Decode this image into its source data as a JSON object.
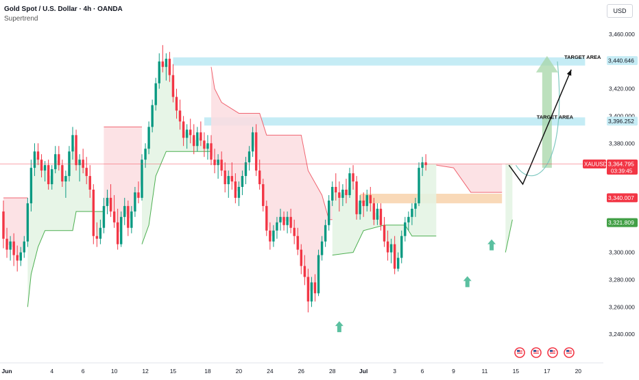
{
  "header": {
    "title": "Gold Spot / U.S. Dollar · 4h · OANDA",
    "indicator": "Supertrend",
    "currency": "USD"
  },
  "colors": {
    "up": "#089981",
    "down": "#f23645",
    "target_fill": "#b2e6f2",
    "zone_fill": "#f7c99a",
    "supertrend_up": "#4caf50",
    "supertrend_down": "#f06470",
    "arrow_fill": "#a5d6a7",
    "marker": "#5bc0a0",
    "price_label": "#f23645",
    "support_label": "#43a047"
  },
  "chart_data": {
    "type": "candlestick",
    "symbol": "XAUUSD",
    "timeframe": "4h",
    "ylim": [
      3225,
      3470
    ],
    "yticks": [
      {
        "value": 3460,
        "label": "3,460.000"
      },
      {
        "value": 3420,
        "label": "3,420.000"
      },
      {
        "value": 3400,
        "label": "3,400.000"
      },
      {
        "value": 3380,
        "label": "3,380.000"
      },
      {
        "value": 3300,
        "label": "3,300.000"
      },
      {
        "value": 3280,
        "label": "3,280.000"
      },
      {
        "value": 3260,
        "label": "3,260.000"
      },
      {
        "value": 3240,
        "label": "3,240.000"
      }
    ],
    "xticks": [
      {
        "bar": 1,
        "label": "Jun",
        "bold": true
      },
      {
        "bar": 14,
        "label": "4"
      },
      {
        "bar": 23,
        "label": "6"
      },
      {
        "bar": 32,
        "label": "10"
      },
      {
        "bar": 41,
        "label": "12"
      },
      {
        "bar": 49,
        "label": "15"
      },
      {
        "bar": 59,
        "label": "18"
      },
      {
        "bar": 68,
        "label": "20"
      },
      {
        "bar": 77,
        "label": "24"
      },
      {
        "bar": 86,
        "label": "26"
      },
      {
        "bar": 95,
        "label": "28"
      },
      {
        "bar": 104,
        "label": "Jul",
        "bold": true
      },
      {
        "bar": 113,
        "label": "3"
      },
      {
        "bar": 121,
        "label": "6"
      },
      {
        "bar": 130,
        "label": "9"
      },
      {
        "bar": 139,
        "label": "11"
      },
      {
        "bar": 148,
        "label": "15"
      },
      {
        "bar": 157,
        "label": "17"
      },
      {
        "bar": 166,
        "label": "20"
      }
    ],
    "candles_start_bar": 0,
    "candles": [
      [
        3330,
        3338,
        3303,
        3310
      ],
      [
        3310,
        3318,
        3296,
        3302
      ],
      [
        3302,
        3312,
        3294,
        3308
      ],
      [
        3308,
        3314,
        3290,
        3298
      ],
      [
        3298,
        3305,
        3286,
        3294
      ],
      [
        3294,
        3304,
        3290,
        3300
      ],
      [
        3300,
        3312,
        3296,
        3308
      ],
      [
        3308,
        3340,
        3304,
        3336
      ],
      [
        3336,
        3368,
        3330,
        3362
      ],
      [
        3362,
        3380,
        3356,
        3374
      ],
      [
        3374,
        3380,
        3364,
        3368
      ],
      [
        3368,
        3372,
        3355,
        3360
      ],
      [
        3360,
        3367,
        3352,
        3364
      ],
      [
        3364,
        3368,
        3346,
        3350
      ],
      [
        3350,
        3364,
        3346,
        3361
      ],
      [
        3361,
        3378,
        3358,
        3372
      ],
      [
        3372,
        3378,
        3360,
        3364
      ],
      [
        3364,
        3368,
        3348,
        3352
      ],
      [
        3352,
        3360,
        3340,
        3356
      ],
      [
        3356,
        3378,
        3352,
        3374
      ],
      [
        3374,
        3392,
        3368,
        3386
      ],
      [
        3386,
        3390,
        3360,
        3364
      ],
      [
        3364,
        3372,
        3352,
        3368
      ],
      [
        3368,
        3376,
        3358,
        3362
      ],
      [
        3362,
        3370,
        3350,
        3356
      ],
      [
        3356,
        3364,
        3340,
        3346
      ],
      [
        3346,
        3350,
        3306,
        3312
      ],
      [
        3312,
        3322,
        3304,
        3310
      ],
      [
        3310,
        3324,
        3306,
        3318
      ],
      [
        3318,
        3340,
        3314,
        3334
      ],
      [
        3334,
        3346,
        3328,
        3340
      ],
      [
        3340,
        3350,
        3326,
        3330
      ],
      [
        3330,
        3342,
        3318,
        3322
      ],
      [
        3322,
        3332,
        3302,
        3306
      ],
      [
        3306,
        3330,
        3304,
        3326
      ],
      [
        3326,
        3340,
        3320,
        3334
      ],
      [
        3334,
        3338,
        3312,
        3318
      ],
      [
        3318,
        3334,
        3314,
        3330
      ],
      [
        3330,
        3348,
        3326,
        3344
      ],
      [
        3344,
        3352,
        3336,
        3340
      ],
      [
        3340,
        3372,
        3338,
        3368
      ],
      [
        3368,
        3380,
        3362,
        3376
      ],
      [
        3376,
        3396,
        3372,
        3392
      ],
      [
        3392,
        3412,
        3388,
        3408
      ],
      [
        3408,
        3428,
        3404,
        3424
      ],
      [
        3424,
        3446,
        3420,
        3440
      ],
      [
        3440,
        3452,
        3432,
        3436
      ],
      [
        3436,
        3446,
        3426,
        3442
      ],
      [
        3442,
        3447,
        3425,
        3430
      ],
      [
        3430,
        3438,
        3410,
        3414
      ],
      [
        3414,
        3420,
        3398,
        3404
      ],
      [
        3404,
        3412,
        3390,
        3396
      ],
      [
        3396,
        3400,
        3378,
        3384
      ],
      [
        3384,
        3394,
        3376,
        3390
      ],
      [
        3390,
        3398,
        3380,
        3386
      ],
      [
        3386,
        3394,
        3372,
        3378
      ],
      [
        3378,
        3392,
        3374,
        3388
      ],
      [
        3388,
        3396,
        3378,
        3382
      ],
      [
        3382,
        3388,
        3370,
        3376
      ],
      [
        3376,
        3386,
        3368,
        3380
      ],
      [
        3380,
        3386,
        3364,
        3368
      ],
      [
        3368,
        3376,
        3358,
        3364
      ],
      [
        3364,
        3372,
        3354,
        3368
      ],
      [
        3368,
        3374,
        3356,
        3360
      ],
      [
        3360,
        3366,
        3344,
        3350
      ],
      [
        3350,
        3360,
        3340,
        3356
      ],
      [
        3356,
        3366,
        3346,
        3352
      ],
      [
        3352,
        3358,
        3336,
        3340
      ],
      [
        3340,
        3352,
        3334,
        3348
      ],
      [
        3348,
        3360,
        3342,
        3356
      ],
      [
        3356,
        3370,
        3350,
        3366
      ],
      [
        3366,
        3378,
        3360,
        3374
      ],
      [
        3374,
        3392,
        3370,
        3388
      ],
      [
        3388,
        3394,
        3356,
        3360
      ],
      [
        3360,
        3368,
        3346,
        3350
      ],
      [
        3350,
        3354,
        3330,
        3334
      ],
      [
        3334,
        3338,
        3312,
        3316
      ],
      [
        3316,
        3322,
        3302,
        3308
      ],
      [
        3308,
        3320,
        3304,
        3316
      ],
      [
        3316,
        3326,
        3310,
        3322
      ],
      [
        3322,
        3332,
        3316,
        3326
      ],
      [
        3326,
        3330,
        3316,
        3320
      ],
      [
        3320,
        3330,
        3314,
        3326
      ],
      [
        3326,
        3332,
        3314,
        3318
      ],
      [
        3318,
        3324,
        3306,
        3312
      ],
      [
        3312,
        3318,
        3298,
        3302
      ],
      [
        3302,
        3306,
        3284,
        3290
      ],
      [
        3290,
        3298,
        3276,
        3282
      ],
      [
        3282,
        3288,
        3256,
        3264
      ],
      [
        3264,
        3282,
        3260,
        3278
      ],
      [
        3278,
        3284,
        3264,
        3270
      ],
      [
        3270,
        3302,
        3268,
        3298
      ],
      [
        3298,
        3312,
        3294,
        3308
      ],
      [
        3308,
        3324,
        3304,
        3320
      ],
      [
        3320,
        3342,
        3316,
        3338
      ],
      [
        3338,
        3352,
        3334,
        3348
      ],
      [
        3348,
        3358,
        3338,
        3344
      ],
      [
        3344,
        3352,
        3330,
        3340
      ],
      [
        3340,
        3350,
        3334,
        3346
      ],
      [
        3346,
        3354,
        3336,
        3342
      ],
      [
        3342,
        3362,
        3340,
        3358
      ],
      [
        3358,
        3364,
        3346,
        3352
      ],
      [
        3352,
        3356,
        3324,
        3328
      ],
      [
        3328,
        3342,
        3324,
        3338
      ],
      [
        3338,
        3344,
        3326,
        3334
      ],
      [
        3334,
        3346,
        3330,
        3342
      ],
      [
        3342,
        3348,
        3330,
        3336
      ],
      [
        3336,
        3340,
        3320,
        3324
      ],
      [
        3324,
        3336,
        3320,
        3332
      ],
      [
        3332,
        3336,
        3316,
        3320
      ],
      [
        3320,
        3326,
        3304,
        3308
      ],
      [
        3308,
        3316,
        3294,
        3300
      ],
      [
        3300,
        3310,
        3292,
        3306
      ],
      [
        3306,
        3312,
        3284,
        3288
      ],
      [
        3288,
        3300,
        3286,
        3296
      ],
      [
        3296,
        3316,
        3292,
        3312
      ],
      [
        3312,
        3326,
        3308,
        3322
      ],
      [
        3322,
        3330,
        3316,
        3326
      ],
      [
        3326,
        3336,
        3320,
        3332
      ],
      [
        3332,
        3340,
        3326,
        3336
      ],
      [
        3336,
        3366,
        3334,
        3362
      ],
      [
        3362,
        3370,
        3356,
        3366
      ],
      [
        3366,
        3372,
        3360,
        3364
      ]
    ],
    "horizontal_levels": [
      {
        "value": 3364.795,
        "label": "3,364.795",
        "sublabel": "03:39:45",
        "tag": "XAUUSD",
        "kind": "price"
      },
      {
        "value": 3340.007,
        "label": "3,340.007",
        "kind": "resistance"
      },
      {
        "value": 3321.809,
        "label": "3,321.809",
        "kind": "support"
      },
      {
        "value": 3440.646,
        "label": "3,440.646",
        "kind": "target"
      },
      {
        "value": 3396.252,
        "label": "3,396.252",
        "kind": "target"
      }
    ],
    "zones": [
      {
        "label": "TARGET AREA",
        "from_bar": 49,
        "to_bar": 168,
        "low": 3437,
        "high": 3443
      },
      {
        "label": "TARGET AREA",
        "from_bar": 58,
        "to_bar": 168,
        "low": 3393,
        "high": 3399
      },
      {
        "label": "",
        "from_bar": 103,
        "to_bar": 144,
        "low": 3336,
        "high": 3343
      }
    ],
    "supertrend": [
      {
        "trend": "down",
        "points": [
          [
            0,
            3340
          ],
          [
            7,
            3340
          ]
        ]
      },
      {
        "trend": "up",
        "points": [
          [
            7,
            3260
          ],
          [
            8,
            3284
          ],
          [
            10,
            3304
          ],
          [
            12,
            3316
          ],
          [
            20,
            3316
          ],
          [
            21,
            3330
          ],
          [
            29,
            3330
          ]
        ]
      },
      {
        "trend": "down",
        "points": [
          [
            29,
            3392
          ],
          [
            40,
            3392
          ]
        ]
      },
      {
        "trend": "up",
        "points": [
          [
            40,
            3306
          ],
          [
            42,
            3320
          ],
          [
            44,
            3356
          ],
          [
            47,
            3374
          ],
          [
            60,
            3374
          ]
        ]
      },
      {
        "trend": "down",
        "points": [
          [
            60,
            3436
          ],
          [
            61,
            3420
          ],
          [
            63,
            3410
          ],
          [
            68,
            3402
          ],
          [
            74,
            3402
          ],
          [
            76,
            3386
          ],
          [
            86,
            3386
          ],
          [
            88,
            3360
          ],
          [
            92,
            3342
          ],
          [
            94,
            3324
          ],
          [
            95,
            3324
          ]
        ]
      },
      {
        "trend": "up",
        "points": [
          [
            95,
            3298
          ],
          [
            101,
            3300
          ],
          [
            104,
            3316
          ],
          [
            110,
            3320
          ],
          [
            116,
            3320
          ],
          [
            118,
            3312
          ],
          [
            125,
            3312
          ]
        ]
      },
      {
        "trend": "down",
        "points": [
          [
            125,
            3364
          ],
          [
            130,
            3362
          ],
          [
            135,
            3344
          ],
          [
            144,
            3344
          ]
        ]
      },
      {
        "trend": "up",
        "points": [
          [
            145,
            3300
          ],
          [
            147,
            3324
          ]
        ]
      }
    ],
    "projection_path": [
      [
        146,
        3364
      ],
      [
        150,
        3350
      ],
      [
        155,
        3380
      ],
      [
        164,
        3434
      ]
    ],
    "markers": [
      {
        "bar": 97,
        "value": 3245,
        "type": "up-arrow"
      },
      {
        "bar": 134,
        "value": 3278,
        "type": "up-arrow"
      },
      {
        "bar": 141,
        "value": 3305,
        "type": "up-arrow"
      }
    ],
    "annotations": [
      {
        "text": "TARGET AREA",
        "bar": 154,
        "value": 3398
      },
      {
        "text": "TARGET AREA",
        "bar": 162,
        "value": 3442
      }
    ]
  }
}
